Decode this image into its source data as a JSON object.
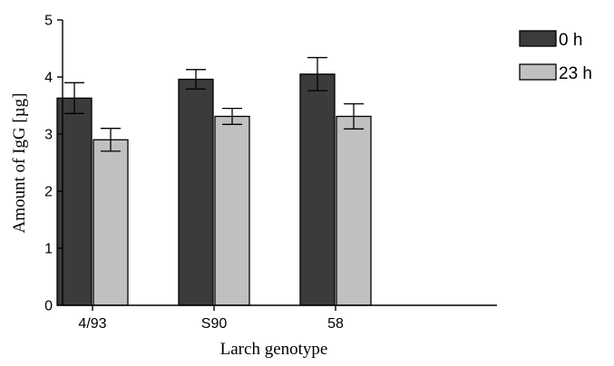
{
  "chart_data": {
    "type": "bar",
    "xlabel": "Larch genotype",
    "ylabel": "Amount of IgG [µg]",
    "categories": [
      "4/93",
      "S90",
      "58"
    ],
    "ylim": [
      0,
      5
    ],
    "yticks": [
      "0",
      "1",
      "2",
      "3",
      "4",
      "5"
    ],
    "series": [
      {
        "name": "0 h",
        "color": "#3b3b3b",
        "values": [
          3.63,
          3.96,
          4.05
        ],
        "errors": [
          0.27,
          0.17,
          0.29
        ]
      },
      {
        "name": "23 h",
        "color": "#c0c0c0",
        "values": [
          2.9,
          3.31,
          3.31
        ],
        "errors": [
          0.2,
          0.14,
          0.22
        ]
      }
    ],
    "error_bars": true,
    "legend_position": "top-right",
    "grid": false
  }
}
